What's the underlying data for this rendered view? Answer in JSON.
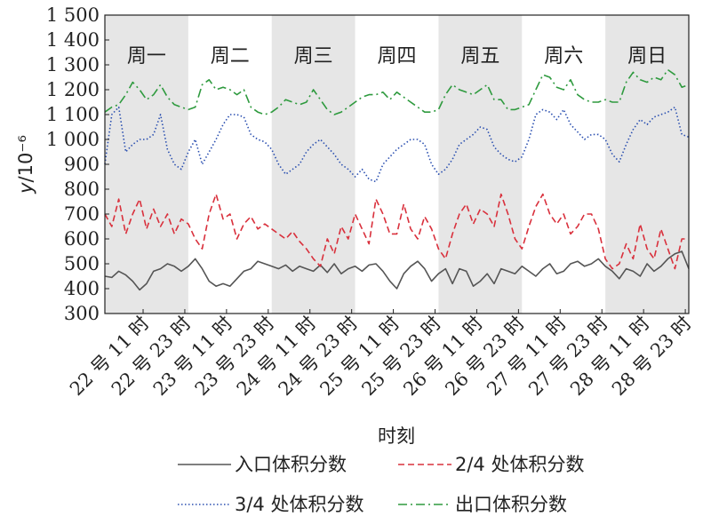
{
  "chart_data": {
    "type": "line",
    "xlabel": "时刻",
    "ylabel_italic": "y",
    "ylabel_unit": "/10⁻⁶",
    "ylim": [
      300,
      1500
    ],
    "yticks": [
      300,
      400,
      500,
      600,
      700,
      800,
      900,
      1000,
      1100,
      1200,
      1300,
      1400,
      1500
    ],
    "ytick_labels": [
      "300",
      "400",
      "500",
      "600",
      "700",
      "800",
      "900",
      "1 000",
      "1 100",
      "1 200",
      "1 300",
      "1 400",
      "1 500"
    ],
    "x_unit": "hour",
    "xlim": [
      0,
      168
    ],
    "xticks": [
      11,
      23,
      35,
      47,
      59,
      71,
      83,
      95,
      107,
      119,
      131,
      143,
      155,
      167
    ],
    "xtick_labels": [
      "22 号 11 时",
      "22 号 23 时",
      "23 号 11 时",
      "23 号 23 时",
      "24 号 11 时",
      "24 号 23 时",
      "25 号 11 时",
      "25 号 23 时",
      "26 号 11 时",
      "26 号 23 时",
      "27 号 11 时",
      "27 号 23 时",
      "28 号 11 时",
      "28 号 23 时"
    ],
    "day_bands": [
      {
        "label": "周一",
        "start": 0,
        "end": 24,
        "shaded": true
      },
      {
        "label": "周二",
        "start": 24,
        "end": 48,
        "shaded": false
      },
      {
        "label": "周三",
        "start": 48,
        "end": 72,
        "shaded": true
      },
      {
        "label": "周四",
        "start": 72,
        "end": 96,
        "shaded": false
      },
      {
        "label": "周五",
        "start": 96,
        "end": 120,
        "shaded": true
      },
      {
        "label": "周六",
        "start": 120,
        "end": 144,
        "shaded": false
      },
      {
        "label": "周日",
        "start": 144,
        "end": 168,
        "shaded": true
      }
    ],
    "grid": false,
    "legend_position": "bottom",
    "series": [
      {
        "name": "入口体积分数",
        "color": "#555555",
        "dash": "solid",
        "x": [
          0,
          2,
          4,
          6,
          8,
          10,
          12,
          14,
          16,
          18,
          20,
          22,
          24,
          26,
          28,
          30,
          32,
          34,
          36,
          38,
          40,
          42,
          44,
          46,
          48,
          50,
          52,
          54,
          56,
          58,
          60,
          62,
          64,
          66,
          68,
          70,
          72,
          74,
          76,
          78,
          80,
          82,
          84,
          86,
          88,
          90,
          92,
          94,
          96,
          98,
          100,
          102,
          104,
          106,
          108,
          110,
          112,
          114,
          116,
          118,
          120,
          122,
          124,
          126,
          128,
          130,
          132,
          134,
          136,
          138,
          140,
          142,
          144,
          146,
          148,
          150,
          152,
          154,
          156,
          158,
          160,
          162,
          164,
          166,
          168
        ],
        "y": [
          450,
          445,
          470,
          455,
          430,
          395,
          420,
          470,
          480,
          500,
          490,
          470,
          490,
          520,
          480,
          430,
          410,
          420,
          410,
          440,
          470,
          480,
          510,
          500,
          490,
          480,
          495,
          470,
          490,
          480,
          470,
          495,
          465,
          500,
          460,
          480,
          490,
          470,
          495,
          500,
          470,
          430,
          400,
          460,
          490,
          510,
          480,
          430,
          460,
          480,
          420,
          480,
          470,
          410,
          430,
          460,
          420,
          480,
          470,
          460,
          490,
          470,
          450,
          480,
          500,
          460,
          470,
          500,
          510,
          490,
          500,
          520,
          490,
          470,
          440,
          480,
          470,
          450,
          500,
          470,
          490,
          520,
          540,
          550,
          480
        ]
      },
      {
        "name": "2/4 处体积分数",
        "color": "#d9303c",
        "dash": "dashed",
        "x": [
          0,
          2,
          4,
          6,
          8,
          10,
          12,
          14,
          16,
          18,
          20,
          22,
          24,
          26,
          28,
          30,
          32,
          34,
          36,
          38,
          40,
          42,
          44,
          46,
          48,
          50,
          52,
          54,
          56,
          58,
          60,
          62,
          64,
          66,
          68,
          70,
          72,
          74,
          76,
          78,
          80,
          82,
          84,
          86,
          88,
          90,
          92,
          94,
          96,
          98,
          100,
          102,
          104,
          106,
          108,
          110,
          112,
          114,
          116,
          118,
          120,
          122,
          124,
          126,
          128,
          130,
          132,
          134,
          136,
          138,
          140,
          142,
          144,
          146,
          148,
          150,
          152,
          154,
          156,
          158,
          160,
          162,
          164,
          166,
          168
        ],
        "y": [
          700,
          650,
          760,
          620,
          700,
          760,
          640,
          720,
          650,
          700,
          620,
          680,
          660,
          600,
          560,
          700,
          780,
          680,
          700,
          600,
          660,
          690,
          640,
          660,
          640,
          620,
          600,
          630,
          590,
          560,
          520,
          490,
          600,
          540,
          650,
          600,
          700,
          640,
          580,
          760,
          700,
          620,
          620,
          740,
          640,
          600,
          690,
          640,
          560,
          520,
          620,
          700,
          740,
          660,
          720,
          700,
          650,
          780,
          700,
          600,
          560,
          650,
          730,
          780,
          700,
          660,
          700,
          620,
          650,
          700,
          700,
          640,
          520,
          480,
          500,
          580,
          520,
          660,
          560,
          520,
          640,
          560,
          480,
          600,
          600
        ]
      },
      {
        "name": "3/4 处体积分数",
        "color": "#2a4fb0",
        "dash": "dotted",
        "x": [
          0,
          2,
          4,
          6,
          8,
          10,
          12,
          14,
          16,
          18,
          20,
          22,
          24,
          26,
          28,
          30,
          32,
          34,
          36,
          38,
          40,
          42,
          44,
          46,
          48,
          50,
          52,
          54,
          56,
          58,
          60,
          62,
          64,
          66,
          68,
          70,
          72,
          74,
          76,
          78,
          80,
          82,
          84,
          86,
          88,
          90,
          92,
          94,
          96,
          98,
          100,
          102,
          104,
          106,
          108,
          110,
          112,
          114,
          116,
          118,
          120,
          122,
          124,
          126,
          128,
          130,
          132,
          134,
          136,
          138,
          140,
          142,
          144,
          146,
          148,
          150,
          152,
          154,
          156,
          158,
          160,
          162,
          164,
          166,
          168
        ],
        "y": [
          900,
          1100,
          1130,
          950,
          980,
          1000,
          1000,
          1020,
          1100,
          960,
          900,
          880,
          950,
          1000,
          900,
          950,
          1000,
          1060,
          1100,
          1100,
          1090,
          1020,
          1000,
          990,
          960,
          900,
          860,
          880,
          900,
          950,
          980,
          1000,
          970,
          940,
          900,
          880,
          850,
          880,
          840,
          830,
          900,
          930,
          960,
          980,
          1000,
          1000,
          980,
          900,
          860,
          880,
          920,
          980,
          1000,
          1020,
          1050,
          1040,
          970,
          940,
          920,
          910,
          930,
          1000,
          1100,
          1120,
          1110,
          1080,
          1120,
          1060,
          1030,
          1000,
          1020,
          1020,
          1000,
          940,
          910,
          980,
          1040,
          1080,
          1060,
          1090,
          1100,
          1110,
          1130,
          1020,
          1010
        ]
      },
      {
        "name": "出口体积分数",
        "color": "#2e9a3e",
        "dash": "dashdot",
        "x": [
          0,
          2,
          4,
          6,
          8,
          10,
          12,
          14,
          16,
          18,
          20,
          22,
          24,
          26,
          28,
          30,
          32,
          34,
          36,
          38,
          40,
          42,
          44,
          46,
          48,
          50,
          52,
          54,
          56,
          58,
          60,
          62,
          64,
          66,
          68,
          70,
          72,
          74,
          76,
          78,
          80,
          82,
          84,
          86,
          88,
          90,
          92,
          94,
          96,
          98,
          100,
          102,
          104,
          106,
          108,
          110,
          112,
          114,
          116,
          118,
          120,
          122,
          124,
          126,
          128,
          130,
          132,
          134,
          136,
          138,
          140,
          142,
          144,
          146,
          148,
          150,
          152,
          154,
          156,
          158,
          160,
          162,
          164,
          166,
          168
        ],
        "y": [
          1110,
          1130,
          1140,
          1180,
          1230,
          1200,
          1160,
          1180,
          1220,
          1170,
          1140,
          1130,
          1120,
          1130,
          1220,
          1240,
          1200,
          1210,
          1200,
          1180,
          1200,
          1130,
          1110,
          1100,
          1110,
          1130,
          1160,
          1150,
          1140,
          1150,
          1200,
          1160,
          1120,
          1100,
          1110,
          1130,
          1150,
          1170,
          1180,
          1180,
          1190,
          1160,
          1190,
          1170,
          1150,
          1130,
          1110,
          1110,
          1120,
          1180,
          1220,
          1200,
          1190,
          1180,
          1200,
          1220,
          1160,
          1160,
          1120,
          1120,
          1130,
          1140,
          1200,
          1260,
          1250,
          1210,
          1200,
          1240,
          1180,
          1160,
          1150,
          1150,
          1160,
          1150,
          1150,
          1230,
          1270,
          1240,
          1230,
          1250,
          1240,
          1280,
          1260,
          1210,
          1220
        ]
      }
    ]
  }
}
